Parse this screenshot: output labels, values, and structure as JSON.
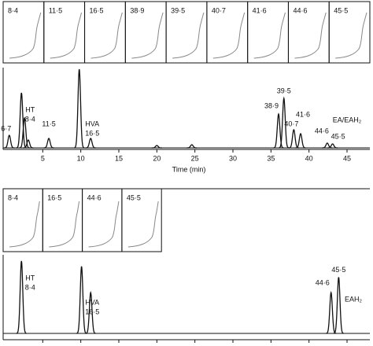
{
  "chart_data": [
    {
      "type": "chromatogram",
      "inset_labels": [
        "8·4",
        "11·5",
        "16·5",
        "38·9",
        "39·5",
        "40·7",
        "41·6",
        "44·6",
        "45·5"
      ],
      "x_label": "Time (min)",
      "xlim": [
        0,
        48
      ],
      "xticks": [
        5,
        10,
        15,
        20,
        25,
        30,
        35,
        40,
        45
      ],
      "ylim": [
        0,
        100
      ],
      "x": [
        0.6,
        2.2,
        2.6,
        3.1,
        5.8,
        9.8,
        11.3,
        20.0,
        24.6,
        36.0,
        36.7,
        38.0,
        38.9,
        42.4,
        43.1
      ],
      "values": [
        16,
        70,
        38,
        10,
        12,
        100,
        12,
        3,
        4,
        43,
        63,
        23,
        18,
        6,
        5
      ],
      "peak_labels": [
        [
          "6·7"
        ],
        [
          "HT",
          "8·4"
        ],
        null,
        null,
        [
          "11·5"
        ],
        null,
        [
          "HVA",
          "16·5"
        ],
        null,
        null,
        [
          "38·9"
        ],
        [
          "39·5"
        ],
        [
          "40·7"
        ],
        [
          "41·6"
        ],
        [
          "44·6"
        ],
        [
          "45·5"
        ]
      ],
      "annotation": "EA/EAH₂",
      "color": "#111111"
    },
    {
      "type": "chromatogram",
      "inset_labels": [
        "8·4",
        "16·5",
        "44·6",
        "45·5"
      ],
      "xlim": [
        0,
        48
      ],
      "ylim": [
        0,
        100
      ],
      "x": [
        2.2,
        10.1,
        11.3,
        42.9,
        43.9
      ],
      "values": [
        94,
        87,
        53,
        53,
        73
      ],
      "peak_labels": [
        [
          "HT",
          "8·4"
        ],
        null,
        [
          "HVA",
          "16·5"
        ],
        [
          "44·6"
        ],
        [
          "45·5"
        ]
      ],
      "annotation": "EAH₂",
      "color": "#111111"
    }
  ]
}
